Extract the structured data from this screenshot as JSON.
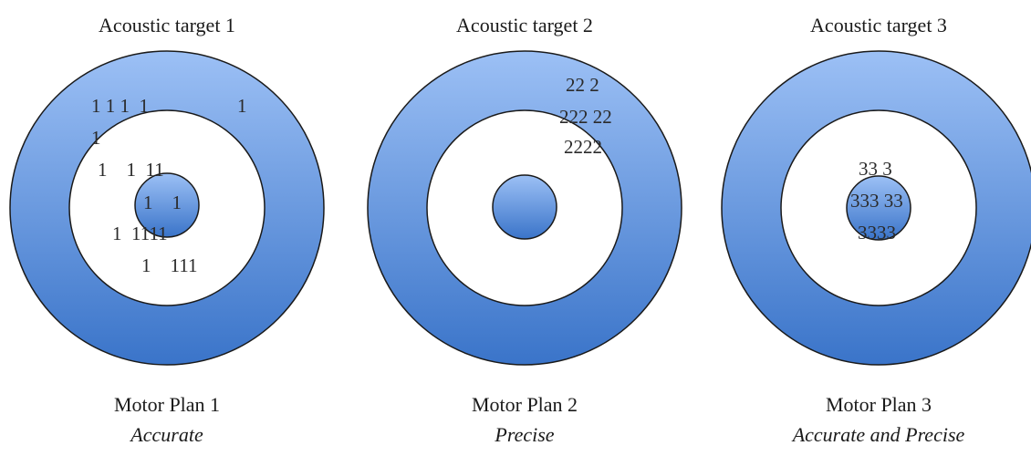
{
  "colors": {
    "ring_top": "#9cc0f5",
    "ring_bottom": "#3a74c9",
    "outline": "#1a1a1a",
    "inner_white": "#ffffff"
  },
  "targets": [
    {
      "title": "Acoustic target 1",
      "plan": "Motor Plan 1",
      "descriptor": "Accurate",
      "marks": [
        "1 1 1  1",
        "1",
        "1",
        "1    1  11",
        "1    1",
        "1  1111",
        "1    111"
      ]
    },
    {
      "title": "Acoustic target 2",
      "plan": "Motor Plan 2",
      "descriptor": "Precise",
      "marks": [
        "22 2",
        "222 22",
        "2222"
      ]
    },
    {
      "title": "Acoustic target 3",
      "plan": "Motor Plan 3",
      "descriptor": "Accurate and Precise",
      "marks": [
        "33 3",
        "333 33",
        "3333"
      ]
    }
  ]
}
